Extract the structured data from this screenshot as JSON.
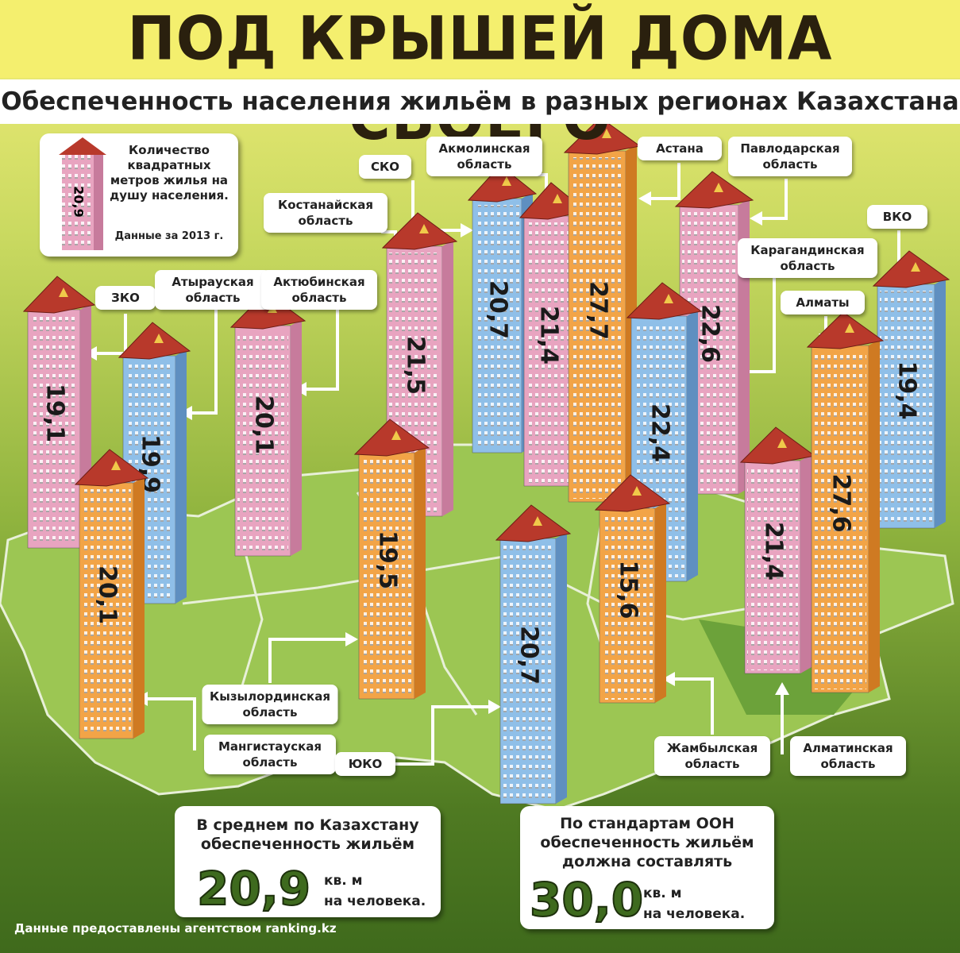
{
  "header": {
    "title": "ПОД КРЫШЕЙ ДОМА СВОЕГО",
    "subtitle": "Обеспеченность населения жильём в разных регионах Казахстана"
  },
  "legend": {
    "sample": "20,9",
    "text": "Количество квадратных метров жилья на душу населения.",
    "note": "Данные за 2013 г."
  },
  "regions": [
    {
      "name": "ЗКО",
      "value": "19,1"
    },
    {
      "name": "Атырауская область",
      "value": "19,9"
    },
    {
      "name": "Актюбинская область",
      "value": "20,1"
    },
    {
      "name": "Мангистауская область",
      "value": "20,1"
    },
    {
      "name": "Костанайская область",
      "value": "21,5"
    },
    {
      "name": "СКО",
      "value": "20,7"
    },
    {
      "name": "Акмолинская область",
      "value": "21,4"
    },
    {
      "name": "Астана",
      "value": "27,7"
    },
    {
      "name": "Павлодарская область",
      "value": "22,6"
    },
    {
      "name": "Карагандинская область",
      "value": "22,4"
    },
    {
      "name": "ВКО",
      "value": "19,4"
    },
    {
      "name": "Алматы",
      "value": "27,6"
    },
    {
      "name": "Кызылординская область",
      "value": "19,5"
    },
    {
      "name": "ЮКО",
      "value": "20,7"
    },
    {
      "name": "Жамбылская область",
      "value": "15,6"
    },
    {
      "name": "Алматинская область",
      "value": "21,4"
    }
  ],
  "summary": [
    {
      "text": "В среднем по Казахстану обеспеченность жильём",
      "value": "20,9",
      "unit": "кв. м",
      "per": "на человека."
    },
    {
      "text": "По стандартам ООН обеспеченность жильём должна составлять",
      "value": "30,0",
      "unit": "кв. м",
      "per": "на человека."
    }
  ],
  "footer": "Данные предоставлены агентством ranking.kz"
}
